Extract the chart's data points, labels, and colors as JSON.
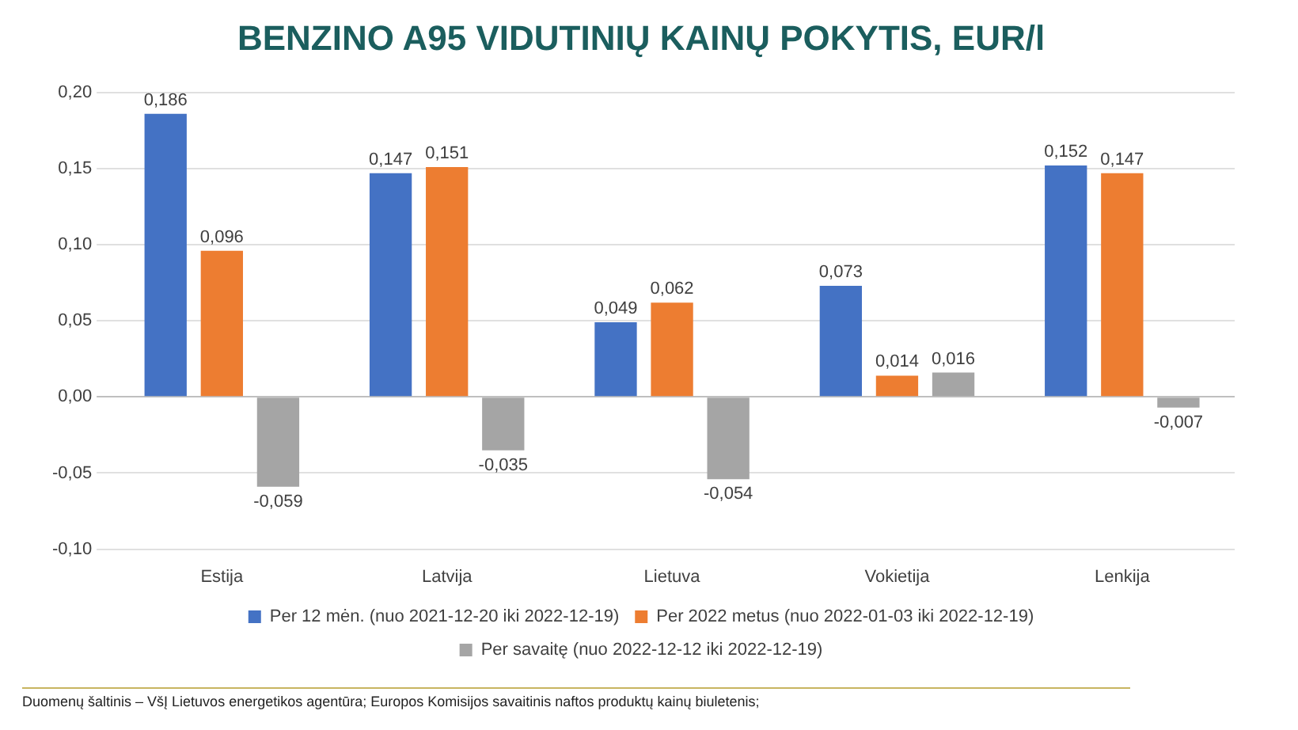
{
  "chart_data": {
    "type": "bar",
    "title": "BENZINO A95 VIDUTINIŲ KAINŲ POKYTIS, EUR/l",
    "categories": [
      "Estija",
      "Latvija",
      "Lietuva",
      "Vokietija",
      "Lenkija"
    ],
    "series": [
      {
        "name": "Per 12 mėn. (nuo 2021-12-20 iki 2022-12-19)",
        "color": "#4472c4",
        "values": [
          0.186,
          0.147,
          0.049,
          0.073,
          0.152
        ],
        "value_labels": [
          "0,186",
          "0,147",
          "0,049",
          "0,073",
          "0,152"
        ]
      },
      {
        "name": "Per 2022 metus (nuo 2022-01-03 iki 2022-12-19)",
        "color": "#ed7d31",
        "values": [
          0.096,
          0.151,
          0.062,
          0.014,
          0.147
        ],
        "value_labels": [
          "0,096",
          "0,151",
          "0,062",
          "0,014",
          "0,147"
        ]
      },
      {
        "name": "Per savaitę (nuo 2022-12-12 iki 2022-12-19)",
        "color": "#a5a5a5",
        "values": [
          -0.059,
          -0.035,
          -0.054,
          0.016,
          -0.007
        ],
        "value_labels": [
          "-0,059",
          "-0,035",
          "-0,054",
          "0,016",
          "-0,007"
        ]
      }
    ],
    "ylim": [
      -0.1,
      0.2
    ],
    "yticks": [
      {
        "value": -0.1,
        "label": "-0,10"
      },
      {
        "value": -0.05,
        "label": "-0,05"
      },
      {
        "value": 0,
        "label": "0,00"
      },
      {
        "value": 0.05,
        "label": "0,05"
      },
      {
        "value": 0.1,
        "label": "0,10"
      },
      {
        "value": 0.15,
        "label": "0,15"
      },
      {
        "value": 0.2,
        "label": "0,20"
      }
    ],
    "grid": "y",
    "legend": "bottom",
    "annotations": [
      "Duomenų šaltinis – VšĮ Lietuvos energetikos agentūra; Europos Komisijos savaitinis naftos produktų kainų biuletenis;"
    ]
  }
}
